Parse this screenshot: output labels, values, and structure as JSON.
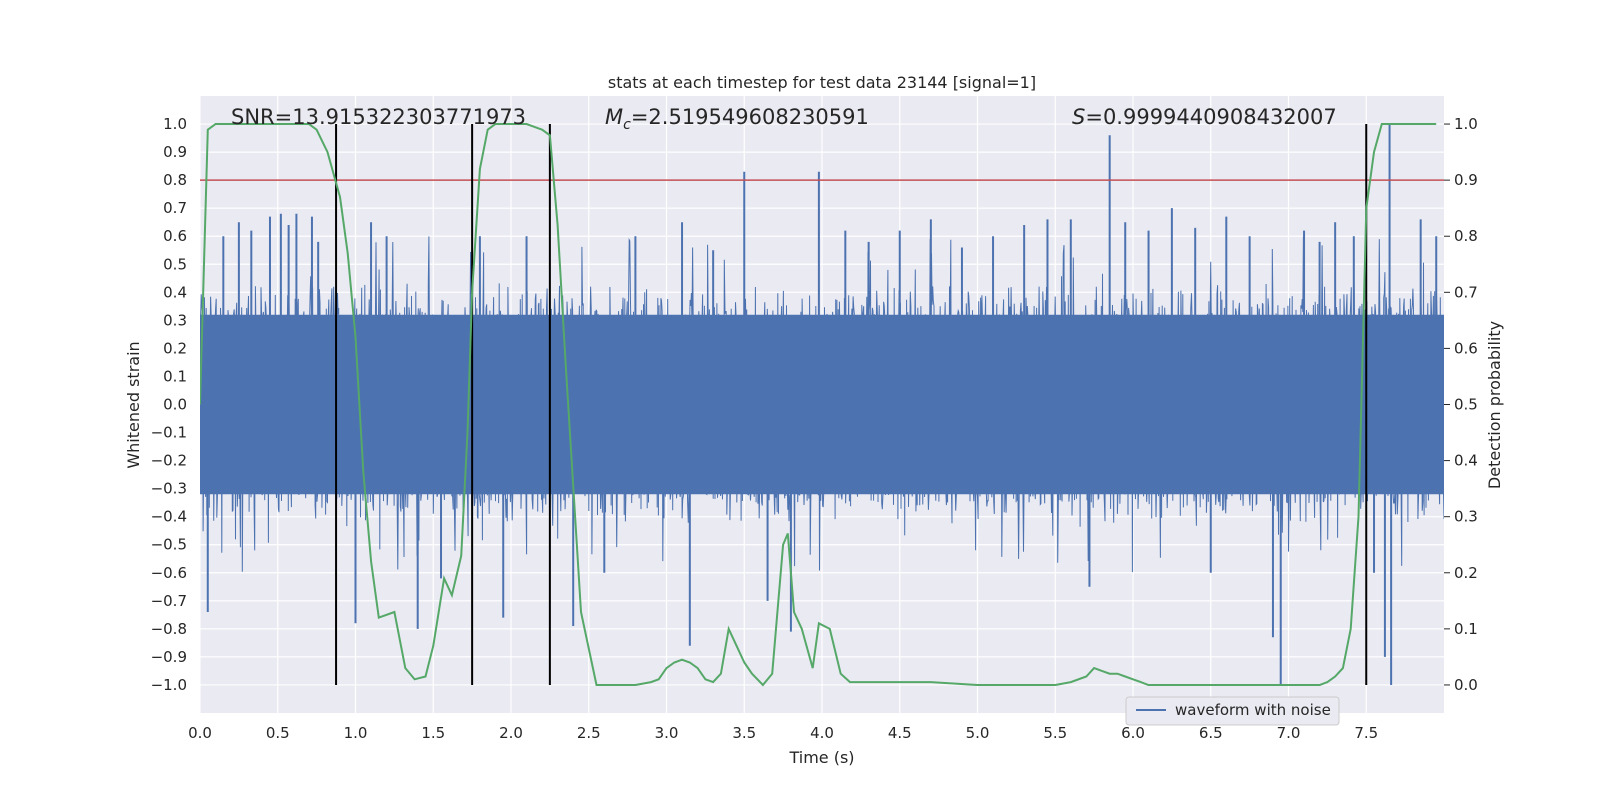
{
  "chart_data": {
    "type": "line",
    "title": "stats at each timestep for test data 23144 [signal=1]",
    "xlabel": "Time (s)",
    "ylabel": "Whitened strain",
    "y2label": "Detection probability",
    "xlim": [
      0.0,
      8.0
    ],
    "ylim": [
      -1.1,
      1.1
    ],
    "y2lim": [
      -0.05,
      1.05
    ],
    "xticks": [
      0.0,
      0.5,
      1.0,
      1.5,
      2.0,
      2.5,
      3.0,
      3.5,
      4.0,
      4.5,
      5.0,
      5.5,
      6.0,
      6.5,
      7.0,
      7.5
    ],
    "xtick_labels": [
      "0.0",
      "0.5",
      "1.0",
      "1.5",
      "2.0",
      "2.5",
      "3.0",
      "3.5",
      "4.0",
      "4.5",
      "5.0",
      "5.5",
      "6.0",
      "6.5",
      "7.0",
      "7.5"
    ],
    "yticks": [
      1.0,
      0.9,
      0.8,
      0.7,
      0.6,
      0.5,
      0.4,
      0.3,
      0.2,
      0.1,
      0.0,
      -0.1,
      -0.2,
      -0.3,
      -0.4,
      -0.5,
      -0.6,
      -0.7,
      -0.8,
      -0.9,
      -1.0
    ],
    "ytick_labels": [
      "1.0",
      "0.9",
      "0.8",
      "0.7",
      "0.6",
      "0.5",
      "0.4",
      "0.3",
      "0.2",
      "0.1",
      "0.0",
      "−0.1",
      "−0.2",
      "−0.3",
      "−0.4",
      "−0.5",
      "−0.6",
      "−0.7",
      "−0.8",
      "−0.9",
      "−1.0"
    ],
    "y2ticks": [
      1.0,
      0.9,
      0.8,
      0.7,
      0.6,
      0.5,
      0.4,
      0.3,
      0.2,
      0.1,
      0.0
    ],
    "y2tick_labels": [
      "1.0",
      "0.9",
      "0.8",
      "0.7",
      "0.6",
      "0.5",
      "0.4",
      "0.3",
      "0.2",
      "0.1",
      "0.0"
    ],
    "annotations": {
      "snr": "SNR=13.915322303771973",
      "mc_symbol": "M",
      "mc_sub": "c",
      "mc_value": "=2.519549608230591",
      "s_symbol": "S",
      "s_value": "=0.9999440908432007"
    },
    "threshold": {
      "y": 0.8,
      "color": "#c44e52"
    },
    "vlines_x": [
      0.875,
      1.75,
      2.25,
      7.5
    ],
    "waveform": {
      "name": "waveform with noise",
      "color": "#4c72b0",
      "note": "dense noisy whitened strain; typical envelope about +/-0.4",
      "spikes": [
        {
          "x": 0.05,
          "y": -0.74
        },
        {
          "x": 0.15,
          "y": 0.6
        },
        {
          "x": 0.25,
          "y": 0.65
        },
        {
          "x": 0.33,
          "y": 0.62
        },
        {
          "x": 0.45,
          "y": 0.67
        },
        {
          "x": 0.52,
          "y": 0.68
        },
        {
          "x": 0.57,
          "y": 0.64
        },
        {
          "x": 0.62,
          "y": 0.68
        },
        {
          "x": 0.72,
          "y": 0.67
        },
        {
          "x": 0.76,
          "y": 0.58
        },
        {
          "x": 1.0,
          "y": -0.78
        },
        {
          "x": 1.1,
          "y": 0.65
        },
        {
          "x": 1.2,
          "y": 0.6
        },
        {
          "x": 1.4,
          "y": -0.8
        },
        {
          "x": 1.55,
          "y": -0.62
        },
        {
          "x": 1.8,
          "y": 0.6
        },
        {
          "x": 1.95,
          "y": -0.76
        },
        {
          "x": 2.1,
          "y": 0.6
        },
        {
          "x": 2.4,
          "y": -0.79
        },
        {
          "x": 2.6,
          "y": -0.6
        },
        {
          "x": 2.8,
          "y": 0.6
        },
        {
          "x": 3.1,
          "y": 0.65
        },
        {
          "x": 3.15,
          "y": -0.86
        },
        {
          "x": 3.3,
          "y": 0.55
        },
        {
          "x": 3.5,
          "y": 0.83
        },
        {
          "x": 3.65,
          "y": -0.7
        },
        {
          "x": 3.8,
          "y": -0.81
        },
        {
          "x": 3.98,
          "y": 0.83
        },
        {
          "x": 4.15,
          "y": 0.62
        },
        {
          "x": 4.3,
          "y": 0.58
        },
        {
          "x": 4.5,
          "y": 0.62
        },
        {
          "x": 4.7,
          "y": 0.66
        },
        {
          "x": 4.9,
          "y": 0.56
        },
        {
          "x": 5.1,
          "y": 0.6
        },
        {
          "x": 5.3,
          "y": 0.64
        },
        {
          "x": 5.45,
          "y": 0.66
        },
        {
          "x": 5.6,
          "y": 0.66
        },
        {
          "x": 5.72,
          "y": -0.65
        },
        {
          "x": 5.85,
          "y": 0.96
        },
        {
          "x": 5.95,
          "y": 0.65
        },
        {
          "x": 6.1,
          "y": 0.62
        },
        {
          "x": 6.25,
          "y": 0.7
        },
        {
          "x": 6.4,
          "y": 0.63
        },
        {
          "x": 6.5,
          "y": -0.6
        },
        {
          "x": 6.6,
          "y": 0.67
        },
        {
          "x": 6.75,
          "y": 0.6
        },
        {
          "x": 6.9,
          "y": -0.83
        },
        {
          "x": 6.95,
          "y": -1.0
        },
        {
          "x": 7.1,
          "y": 0.62
        },
        {
          "x": 7.2,
          "y": 0.58
        },
        {
          "x": 7.3,
          "y": 0.65
        },
        {
          "x": 7.42,
          "y": 0.6
        },
        {
          "x": 7.55,
          "y": -0.6
        },
        {
          "x": 7.62,
          "y": -0.9
        },
        {
          "x": 7.65,
          "y": 1.0
        },
        {
          "x": 7.66,
          "y": -1.0
        },
        {
          "x": 7.85,
          "y": 0.66
        },
        {
          "x": 7.95,
          "y": 0.6
        }
      ]
    },
    "probability": {
      "color": "#55a868",
      "x": [
        0.0,
        0.05,
        0.1,
        0.2,
        0.3,
        0.4,
        0.5,
        0.6,
        0.7,
        0.75,
        0.82,
        0.9,
        0.95,
        1.0,
        1.05,
        1.1,
        1.15,
        1.25,
        1.32,
        1.38,
        1.45,
        1.5,
        1.57,
        1.62,
        1.68,
        1.72,
        1.75,
        1.8,
        1.85,
        1.9,
        2.0,
        2.1,
        2.2,
        2.25,
        2.3,
        2.35,
        2.45,
        2.55,
        2.6,
        2.7,
        2.8,
        2.9,
        2.95,
        3.0,
        3.05,
        3.1,
        3.15,
        3.2,
        3.25,
        3.3,
        3.35,
        3.4,
        3.45,
        3.5,
        3.55,
        3.62,
        3.68,
        3.75,
        3.78,
        3.82,
        3.87,
        3.94,
        3.98,
        4.05,
        4.12,
        4.18,
        4.3,
        4.45,
        4.6,
        4.7,
        5.0,
        5.3,
        5.5,
        5.6,
        5.7,
        5.75,
        5.8,
        5.85,
        5.9,
        5.95,
        6.0,
        6.05,
        6.1,
        6.2,
        6.4,
        6.6,
        6.8,
        7.0,
        7.1,
        7.2,
        7.25,
        7.3,
        7.35,
        7.4,
        7.45,
        7.5,
        7.55,
        7.6,
        7.65,
        7.75,
        7.95
      ],
      "y": [
        0.5,
        0.99,
        1.0,
        1.0,
        1.0,
        1.0,
        1.0,
        1.0,
        1.0,
        0.99,
        0.95,
        0.87,
        0.77,
        0.62,
        0.38,
        0.22,
        0.12,
        0.13,
        0.03,
        0.01,
        0.015,
        0.07,
        0.19,
        0.16,
        0.23,
        0.45,
        0.7,
        0.92,
        0.99,
        1.0,
        1.0,
        1.0,
        0.99,
        0.98,
        0.82,
        0.58,
        0.13,
        0.0,
        0.0,
        0.0,
        0.0,
        0.005,
        0.01,
        0.03,
        0.04,
        0.045,
        0.04,
        0.03,
        0.01,
        0.005,
        0.02,
        0.1,
        0.07,
        0.04,
        0.02,
        0.0,
        0.02,
        0.25,
        0.27,
        0.13,
        0.1,
        0.03,
        0.11,
        0.1,
        0.02,
        0.005,
        0.005,
        0.005,
        0.005,
        0.005,
        0.0,
        0.0,
        0.0,
        0.005,
        0.015,
        0.03,
        0.025,
        0.02,
        0.02,
        0.015,
        0.01,
        0.005,
        0.0,
        0.0,
        0.0,
        0.0,
        0.0,
        0.0,
        0.0,
        0.0,
        0.005,
        0.015,
        0.03,
        0.1,
        0.3,
        0.85,
        0.95,
        1.0,
        1.0,
        1.0,
        1.0
      ]
    },
    "legend": {
      "label": "waveform with noise",
      "location": "lower-right"
    }
  }
}
